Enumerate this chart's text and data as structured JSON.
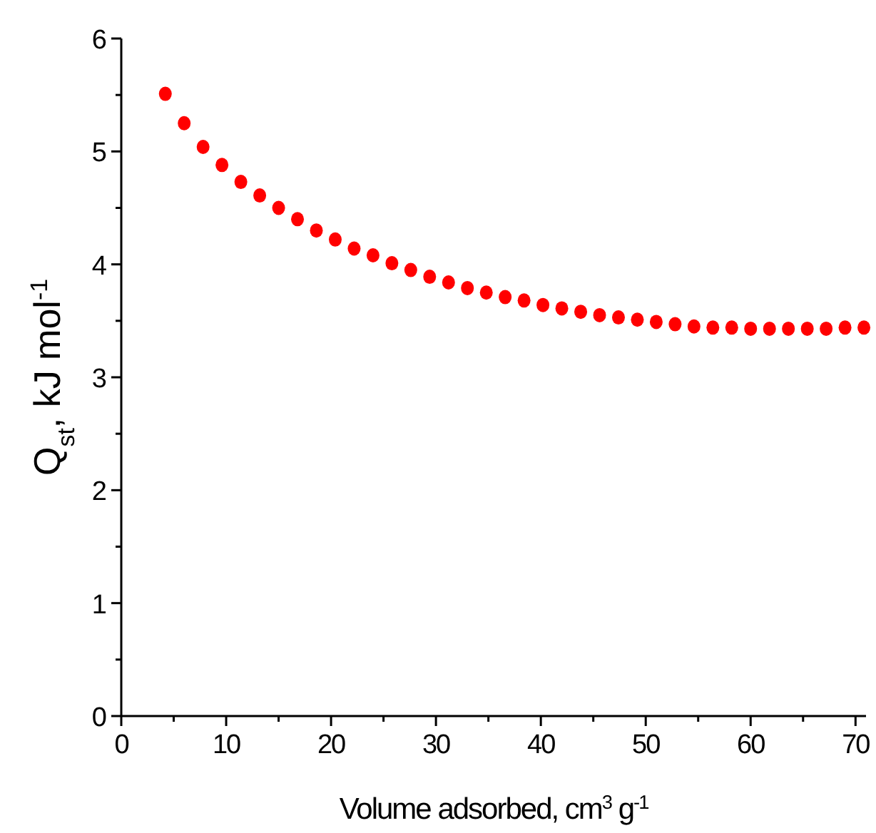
{
  "chart_data": {
    "type": "scatter",
    "xlabel": "Volume adsorbed, cm$^{3}$ g$^{-1}$",
    "ylabel": "Q$_{st}$, kJ mol$^{-1}$",
    "x": [
      4.2,
      6,
      7.8,
      9.6,
      11.4,
      13.2,
      15,
      16.8,
      18.6,
      20.4,
      22.2,
      24,
      25.8,
      27.6,
      29.4,
      31.2,
      33,
      34.8,
      36.6,
      38.4,
      40.2,
      42,
      43.8,
      45.6,
      47.4,
      49.2,
      51,
      52.8,
      54.6,
      56.4,
      58.2,
      60,
      61.8,
      63.6,
      65.4,
      67.2,
      69,
      70.8
    ],
    "series": [
      {
        "color": "#ff0000",
        "values": [
          5.51,
          5.25,
          5.04,
          4.88,
          4.73,
          4.61,
          4.5,
          4.4,
          4.3,
          4.22,
          4.14,
          4.08,
          4.01,
          3.95,
          3.89,
          3.84,
          3.79,
          3.75,
          3.71,
          3.68,
          3.64,
          3.61,
          3.58,
          3.55,
          3.53,
          3.51,
          3.49,
          3.47,
          3.45,
          3.44,
          3.44,
          3.43,
          3.43,
          3.43,
          3.43,
          3.43,
          3.44,
          3.44
        ]
      }
    ],
    "xlim": [
      0,
      71
    ],
    "ylim": [
      0,
      6
    ],
    "xticks": [
      0,
      {
        "value": 5,
        "label": null
      },
      10,
      {
        "value": 15,
        "label": null
      },
      20,
      {
        "value": 25,
        "label": null
      },
      30,
      {
        "value": 35,
        "label": null
      },
      40,
      {
        "value": 45,
        "label": null
      },
      50,
      {
        "value": 55,
        "label": null
      },
      60,
      {
        "value": 65,
        "label": null
      },
      70
    ],
    "yticks": [
      0,
      {
        "value": 0.5,
        "label": null
      },
      1,
      {
        "value": 1.5,
        "label": null
      },
      2,
      {
        "value": 2.5,
        "label": null
      },
      3,
      {
        "value": 3.5,
        "label": null
      },
      4,
      {
        "value": 4.5,
        "label": null
      },
      5,
      {
        "value": 5.5,
        "label": null
      },
      6
    ],
    "marker": "circle"
  }
}
